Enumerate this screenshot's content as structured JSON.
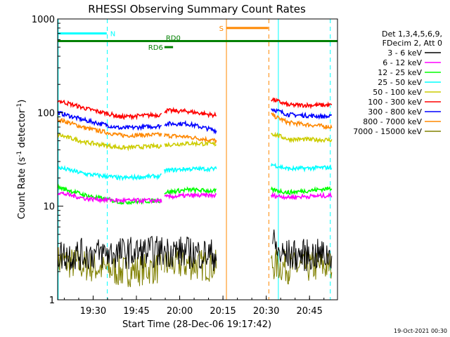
{
  "chart_data": {
    "type": "line",
    "title": "RHESSI Observing Summary Count Rates",
    "xlabel": "Start Time (28-Dec-06 19:17:42)",
    "ylabel_parts": {
      "pre": "Count Rate (s",
      "sup1": "-1",
      "mid": " detector",
      "sup2": "-1",
      "post": ")"
    },
    "y_scale": "log",
    "ylim": [
      1,
      1000
    ],
    "xlim_minutes": [
      0,
      97
    ],
    "x_ticks": [
      {
        "label": "19:30",
        "t": 12.3
      },
      {
        "label": "19:45",
        "t": 27.3
      },
      {
        "label": "20:00",
        "t": 42.3
      },
      {
        "label": "20:15",
        "t": 57.3
      },
      {
        "label": "20:30",
        "t": 72.3
      },
      {
        "label": "20:45",
        "t": 87.3
      }
    ],
    "y_ticks": [
      {
        "label": "1",
        "v": 1
      },
      {
        "label": "10",
        "v": 10
      },
      {
        "label": "100",
        "v": 100
      },
      {
        "label": "1000",
        "v": 1000
      }
    ],
    "legend_header": [
      "Det 1,3,4,5,6,9,",
      "FDecim 2, Att 0"
    ],
    "series": [
      {
        "name": "3 - 6 keV",
        "color": "#000000",
        "segments": [
          [
            [
              0,
              3
            ],
            [
              40,
              3.3
            ]
          ],
          [
            [
              40,
              3.3
            ],
            [
              55,
              3
            ]
          ],
          [
            [
              74.5,
              4.2
            ],
            [
              77,
              3
            ],
            [
              95,
              3
            ]
          ]
        ]
      },
      {
        "name": "6 - 12 keV",
        "color": "#ff00ff",
        "segments": [
          [
            [
              0,
              14
            ],
            [
              10,
              12
            ],
            [
              22,
              11.5
            ],
            [
              36,
              11.5
            ]
          ],
          [
            [
              37,
              12.5
            ],
            [
              45,
              13
            ],
            [
              55,
              13
            ]
          ],
          [
            [
              74,
              13
            ],
            [
              80,
              12.5
            ],
            [
              95,
              13
            ]
          ]
        ]
      },
      {
        "name": "12 - 25 keV",
        "color": "#00ff00",
        "segments": [
          [
            [
              0,
              16
            ],
            [
              10,
              13
            ],
            [
              22,
              11
            ],
            [
              36,
              11.5
            ]
          ],
          [
            [
              37,
              14
            ],
            [
              45,
              15
            ],
            [
              55,
              14.5
            ]
          ],
          [
            [
              74,
              15
            ],
            [
              80,
              14
            ],
            [
              95,
              15.5
            ]
          ]
        ]
      },
      {
        "name": "25 - 50 keV",
        "color": "#00ffff",
        "segments": [
          [
            [
              0,
              26
            ],
            [
              10,
              22
            ],
            [
              22,
              20
            ],
            [
              36,
              21
            ]
          ],
          [
            [
              37,
              24
            ],
            [
              45,
              25
            ],
            [
              55,
              25
            ]
          ],
          [
            [
              74,
              28
            ],
            [
              80,
              25
            ],
            [
              95,
              26
            ]
          ]
        ]
      },
      {
        "name": "50 - 100 keV",
        "color": "#cccc00",
        "segments": [
          [
            [
              0,
              58
            ],
            [
              10,
              48
            ],
            [
              22,
              42
            ],
            [
              36,
              44
            ]
          ],
          [
            [
              37,
              45
            ],
            [
              45,
              47
            ],
            [
              55,
              46
            ]
          ],
          [
            [
              74,
              60
            ],
            [
              80,
              52
            ],
            [
              95,
              51
            ]
          ]
        ]
      },
      {
        "name": "100 - 300 keV",
        "color": "#ff0000",
        "segments": [
          [
            [
              0,
              135
            ],
            [
              10,
              110
            ],
            [
              22,
              90
            ],
            [
              36,
              95
            ]
          ],
          [
            [
              37,
              105
            ],
            [
              45,
              103
            ],
            [
              55,
              93
            ]
          ],
          [
            [
              74,
              140
            ],
            [
              80,
              120
            ],
            [
              95,
              120
            ]
          ]
        ]
      },
      {
        "name": "300 - 800 keV",
        "color": "#0000ff",
        "segments": [
          [
            [
              0,
              100
            ],
            [
              10,
              82
            ],
            [
              22,
              68
            ],
            [
              36,
              72
            ]
          ],
          [
            [
              37,
              76
            ],
            [
              45,
              76
            ],
            [
              55,
              64
            ]
          ],
          [
            [
              74,
              110
            ],
            [
              80,
              95
            ],
            [
              95,
              90
            ]
          ]
        ]
      },
      {
        "name": "800 - 7000 keV",
        "color": "#ff8800",
        "segments": [
          [
            [
              0,
              85
            ],
            [
              10,
              68
            ],
            [
              22,
              57
            ],
            [
              36,
              58
            ]
          ],
          [
            [
              37,
              57
            ],
            [
              45,
              55
            ],
            [
              55,
              50
            ]
          ],
          [
            [
              74,
              95
            ],
            [
              80,
              78
            ],
            [
              95,
              70
            ]
          ]
        ]
      },
      {
        "name": "7000 - 15000 keV",
        "color": "#808000",
        "segments": [
          [
            [
              0,
              2.6
            ],
            [
              10,
              2.3
            ],
            [
              22,
              2
            ],
            [
              36,
              2.2
            ]
          ],
          [
            [
              37,
              2.4
            ],
            [
              45,
              2.4
            ],
            [
              55,
              2.3
            ]
          ],
          [
            [
              74,
              2.4
            ],
            [
              80,
              2.2
            ],
            [
              95,
              2.3
            ]
          ]
        ]
      }
    ],
    "state_bars": [
      {
        "label": "N",
        "color": "#00ffff",
        "ranges": [
          [
            0,
            17
          ]
        ],
        "level": 700
      },
      {
        "label": "S",
        "color": "#ff8800",
        "ranges": [
          [
            58.5,
            73
          ]
        ],
        "level": 800
      },
      {
        "label": "RD0",
        "color": "#008000",
        "ranges": [
          [
            0,
            97
          ]
        ],
        "level": 580
      },
      {
        "label": "RD6",
        "color": "#008000",
        "ranges": [
          [
            37,
            40
          ]
        ],
        "level": 500
      }
    ],
    "vertical_lines": [
      {
        "t": 17.2,
        "color": "#00ffff",
        "style": "dashed"
      },
      {
        "t": 0.2,
        "color": "#00ffff",
        "style": "solid"
      },
      {
        "t": 76.5,
        "color": "#00ffff",
        "style": "solid"
      },
      {
        "t": 94.5,
        "color": "#00ffff",
        "style": "dashed"
      },
      {
        "t": 58.5,
        "color": "#ff8800",
        "style": "solid"
      },
      {
        "t": 73.2,
        "color": "#ff8800",
        "style": "dashed"
      }
    ],
    "footer": "19-Oct-2021 00:30"
  }
}
